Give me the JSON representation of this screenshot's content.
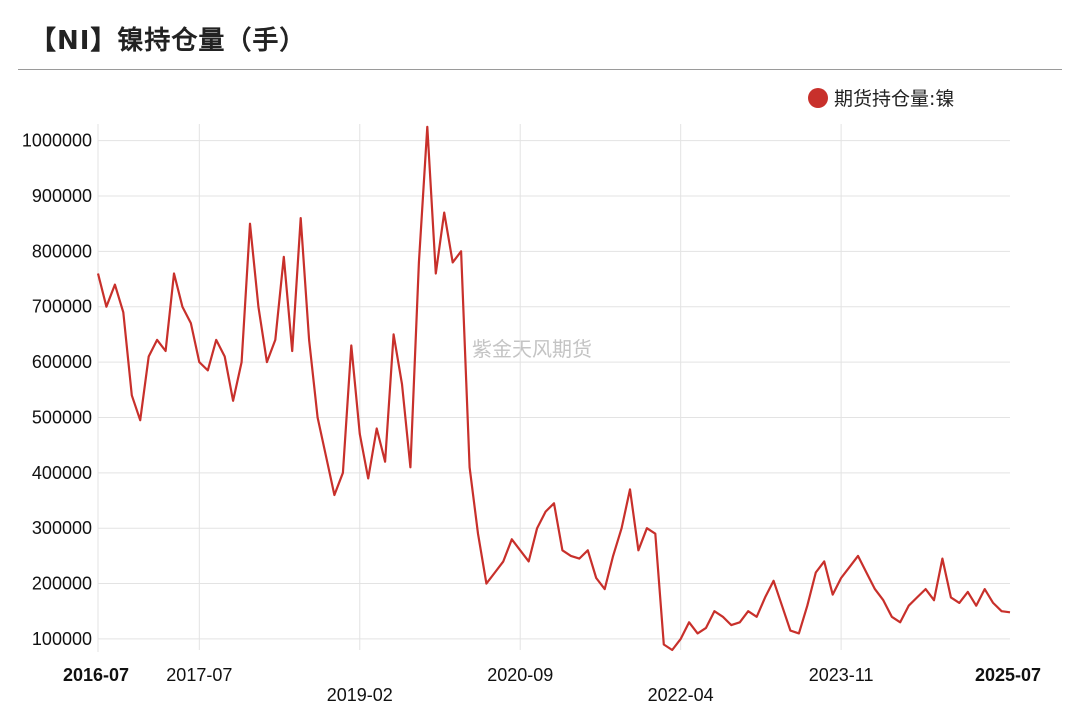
{
  "page": {
    "title": "【NI】镍持仓量（手）",
    "watermark": "紫金天风期货"
  },
  "chart_data": {
    "type": "line",
    "title": "【NI】镍持仓量（手）",
    "xlabel": "",
    "ylabel": "",
    "ylim": [
      80000,
      1030000
    ],
    "yticks": [
      100000,
      200000,
      300000,
      400000,
      500000,
      600000,
      700000,
      800000,
      900000,
      1000000
    ],
    "xlim": [
      "2016-07",
      "2025-07"
    ],
    "xticks": [
      {
        "label": "2016-07",
        "date": "2016-07",
        "bold": true,
        "row": 0
      },
      {
        "label": "2017-07",
        "date": "2017-07",
        "bold": false,
        "row": 0
      },
      {
        "label": "2019-02",
        "date": "2019-02",
        "bold": false,
        "row": 1
      },
      {
        "label": "2020-09",
        "date": "2020-09",
        "bold": false,
        "row": 0
      },
      {
        "label": "2022-04",
        "date": "2022-04",
        "bold": false,
        "row": 1
      },
      {
        "label": "2023-11",
        "date": "2023-11",
        "bold": false,
        "row": 0
      },
      {
        "label": "2025-07",
        "date": "2025-07",
        "bold": true,
        "row": 0
      }
    ],
    "grid": true,
    "legend_position": "top-right",
    "series": [
      {
        "name": "期货持仓量:镍",
        "color": "#c8302b",
        "points": [
          [
            "2016-07",
            760000
          ],
          [
            "2016-08",
            700000
          ],
          [
            "2016-09",
            740000
          ],
          [
            "2016-10",
            690000
          ],
          [
            "2016-11",
            540000
          ],
          [
            "2016-12",
            495000
          ],
          [
            "2017-01",
            610000
          ],
          [
            "2017-02",
            640000
          ],
          [
            "2017-03",
            620000
          ],
          [
            "2017-04",
            760000
          ],
          [
            "2017-05",
            700000
          ],
          [
            "2017-06",
            670000
          ],
          [
            "2017-07",
            600000
          ],
          [
            "2017-08",
            585000
          ],
          [
            "2017-09",
            640000
          ],
          [
            "2017-10",
            610000
          ],
          [
            "2017-11",
            530000
          ],
          [
            "2017-12",
            600000
          ],
          [
            "2018-01",
            850000
          ],
          [
            "2018-02",
            700000
          ],
          [
            "2018-03",
            600000
          ],
          [
            "2018-04",
            640000
          ],
          [
            "2018-05",
            790000
          ],
          [
            "2018-06",
            620000
          ],
          [
            "2018-07",
            860000
          ],
          [
            "2018-08",
            640000
          ],
          [
            "2018-09",
            500000
          ],
          [
            "2018-10",
            430000
          ],
          [
            "2018-11",
            360000
          ],
          [
            "2018-12",
            400000
          ],
          [
            "2019-01",
            630000
          ],
          [
            "2019-02",
            470000
          ],
          [
            "2019-03",
            390000
          ],
          [
            "2019-04",
            480000
          ],
          [
            "2019-05",
            420000
          ],
          [
            "2019-06",
            650000
          ],
          [
            "2019-07",
            560000
          ],
          [
            "2019-08",
            410000
          ],
          [
            "2019-09",
            780000
          ],
          [
            "2019-10",
            1025000
          ],
          [
            "2019-11",
            760000
          ],
          [
            "2019-12",
            870000
          ],
          [
            "2020-01",
            780000
          ],
          [
            "2020-02",
            800000
          ],
          [
            "2020-03",
            410000
          ],
          [
            "2020-04",
            290000
          ],
          [
            "2020-05",
            200000
          ],
          [
            "2020-06",
            220000
          ],
          [
            "2020-07",
            240000
          ],
          [
            "2020-08",
            280000
          ],
          [
            "2020-09",
            260000
          ],
          [
            "2020-10",
            240000
          ],
          [
            "2020-11",
            300000
          ],
          [
            "2020-12",
            330000
          ],
          [
            "2021-01",
            345000
          ],
          [
            "2021-02",
            260000
          ],
          [
            "2021-03",
            250000
          ],
          [
            "2021-04",
            245000
          ],
          [
            "2021-05",
            260000
          ],
          [
            "2021-06",
            210000
          ],
          [
            "2021-07",
            190000
          ],
          [
            "2021-08",
            250000
          ],
          [
            "2021-09",
            300000
          ],
          [
            "2021-10",
            370000
          ],
          [
            "2021-11",
            260000
          ],
          [
            "2021-12",
            300000
          ],
          [
            "2022-01",
            290000
          ],
          [
            "2022-02",
            90000
          ],
          [
            "2022-03",
            80000
          ],
          [
            "2022-04",
            100000
          ],
          [
            "2022-05",
            130000
          ],
          [
            "2022-06",
            110000
          ],
          [
            "2022-07",
            120000
          ],
          [
            "2022-08",
            150000
          ],
          [
            "2022-09",
            140000
          ],
          [
            "2022-10",
            125000
          ],
          [
            "2022-11",
            130000
          ],
          [
            "2022-12",
            150000
          ],
          [
            "2023-01",
            140000
          ],
          [
            "2023-02",
            175000
          ],
          [
            "2023-03",
            205000
          ],
          [
            "2023-04",
            160000
          ],
          [
            "2023-05",
            115000
          ],
          [
            "2023-06",
            110000
          ],
          [
            "2023-07",
            160000
          ],
          [
            "2023-08",
            220000
          ],
          [
            "2023-09",
            240000
          ],
          [
            "2023-10",
            180000
          ],
          [
            "2023-11",
            210000
          ],
          [
            "2023-12",
            230000
          ],
          [
            "2024-01",
            250000
          ],
          [
            "2024-02",
            220000
          ],
          [
            "2024-03",
            190000
          ],
          [
            "2024-04",
            170000
          ],
          [
            "2024-05",
            140000
          ],
          [
            "2024-06",
            130000
          ],
          [
            "2024-07",
            160000
          ],
          [
            "2024-08",
            175000
          ],
          [
            "2024-09",
            190000
          ],
          [
            "2024-10",
            170000
          ],
          [
            "2024-11",
            245000
          ],
          [
            "2024-12",
            175000
          ],
          [
            "2025-01",
            165000
          ],
          [
            "2025-02",
            185000
          ],
          [
            "2025-03",
            160000
          ],
          [
            "2025-04",
            190000
          ],
          [
            "2025-05",
            165000
          ],
          [
            "2025-06",
            150000
          ],
          [
            "2025-07",
            148000
          ]
        ]
      }
    ]
  }
}
